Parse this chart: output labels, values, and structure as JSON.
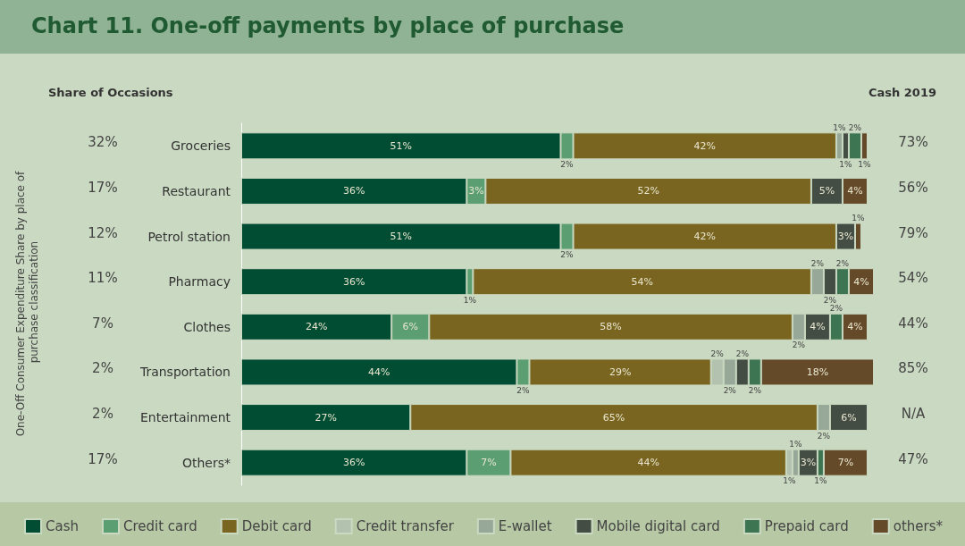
{
  "chart_data": {
    "type": "bar",
    "orientation": "horizontal",
    "stacked": true,
    "title": "Chart 11. One-off payments by place of purchase",
    "categories": [
      "Groceries",
      "Restaurant",
      "Petrol station",
      "Pharmacy",
      "Clothes",
      "Transportation",
      "Entertainment",
      "Others*"
    ],
    "series": [
      {
        "name": "Cash",
        "color": "#004d33",
        "values": [
          51,
          36,
          51,
          36,
          24,
          44,
          27,
          36
        ],
        "value_labels": [
          "51%",
          "36%",
          "51%",
          "36%",
          "24%",
          "44%",
          "27%",
          "36%"
        ]
      },
      {
        "name": "Credit card",
        "color": "#5a9e72",
        "values": [
          2,
          3,
          2,
          1,
          6,
          2,
          null,
          7
        ],
        "value_labels": [
          "2%",
          "3%",
          "2%",
          "1%",
          "6%",
          "2%",
          null,
          "7%"
        ]
      },
      {
        "name": "Debit card",
        "color": "#7a6520",
        "values": [
          42,
          52,
          42,
          54,
          58,
          29,
          65,
          44
        ],
        "value_labels": [
          "42%",
          "52%",
          "42%",
          "54%",
          "58%",
          "29%",
          "65%",
          "44%"
        ]
      },
      {
        "name": "Credit transfer",
        "color": "#b3c2ae",
        "values": [
          null,
          null,
          null,
          null,
          null,
          2,
          null,
          1
        ],
        "value_labels": [
          null,
          null,
          null,
          null,
          null,
          "2%",
          null,
          "1%"
        ]
      },
      {
        "name": "E-wallet",
        "color": "#98a898",
        "values": [
          1,
          null,
          null,
          2,
          2,
          2,
          2,
          1
        ],
        "value_labels": [
          "1%",
          null,
          null,
          "2%",
          "2%",
          "2%",
          "2%",
          "1%"
        ]
      },
      {
        "name": "Mobile digital card",
        "color": "#434d44",
        "values": [
          1,
          5,
          3,
          2,
          4,
          2,
          6,
          3
        ],
        "value_labels": [
          "1%",
          "5%",
          "3%",
          "2%",
          "4%",
          "2%",
          "6%",
          "3%"
        ]
      },
      {
        "name": "Prepaid card",
        "color": "#3d7553",
        "values": [
          2,
          null,
          null,
          2,
          2,
          2,
          null,
          1
        ],
        "value_labels": [
          "2%",
          null,
          null,
          "2%",
          "2%",
          "2%",
          null,
          "1%"
        ]
      },
      {
        "name": "others*",
        "color": "#644a28",
        "values": [
          1,
          4,
          1,
          4,
          4,
          18,
          null,
          7
        ],
        "value_labels": [
          "1%",
          "4%",
          "1%",
          "4%",
          "4%",
          "18%",
          null,
          "7%"
        ]
      }
    ],
    "annotations": [
      "Share of Occasions",
      "Cash 2019",
      "One-Off Consumer Expenditure Share by place of purchase classification",
      "32%",
      "17%",
      "12%",
      "11%",
      "7%",
      "2%",
      "2%",
      "17%",
      "73%",
      "56%",
      "79%",
      "54%",
      "44%",
      "85%",
      "N/A",
      "47%"
    ],
    "legend": "bottom"
  }
}
